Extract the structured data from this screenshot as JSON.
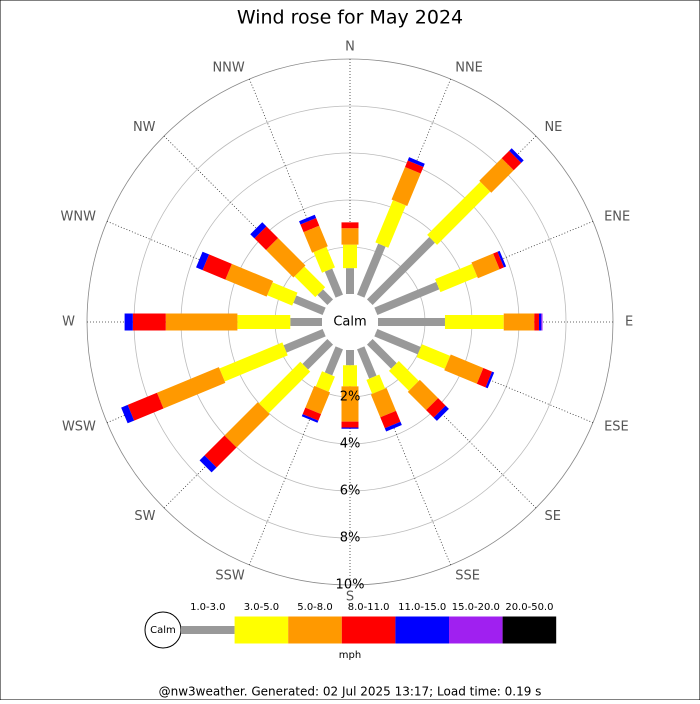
{
  "chart_data": {
    "type": "windrose",
    "title": "Wind rose for May 2024",
    "calm_label": "Calm",
    "unit": "mph",
    "footer": "@nw3weather. Generated: 02 Jul 2025 13:17; Load time: 0.19 s",
    "categories": [
      "N",
      "NNE",
      "NE",
      "ENE",
      "E",
      "ESE",
      "SE",
      "SSE",
      "S",
      "SSW",
      "SW",
      "WSW",
      "W",
      "WNW",
      "NW",
      "NNW"
    ],
    "rlim": [
      0,
      10
    ],
    "rticks": [
      {
        "value": 2,
        "label": "2%"
      },
      {
        "value": 4,
        "label": "4%"
      },
      {
        "value": 6,
        "label": "6%"
      },
      {
        "value": 8,
        "label": "8%"
      },
      {
        "value": 10,
        "label": "10%"
      }
    ],
    "series": [
      {
        "name": "1.0-3.0",
        "color": "#999999",
        "values": [
          1.1,
          2.35,
          3.75,
          2.85,
          2.85,
          2.0,
          1.45,
          1.35,
          0.65,
          1.2,
          1.5,
          1.8,
          1.35,
          1.35,
          0.6,
          1.2
        ]
      },
      {
        "name": "3.0-5.0",
        "color": "#ffff00",
        "values": [
          1.0,
          1.95,
          3.2,
          1.7,
          2.5,
          1.3,
          1.2,
          0.65,
          0.9,
          0.7,
          2.5,
          2.9,
          2.25,
          1.15,
          1.25,
          0.95
        ]
      },
      {
        "name": "5.0-8.0",
        "color": "#ff9900",
        "values": [
          0.7,
          1.5,
          1.35,
          1.0,
          1.3,
          1.5,
          1.1,
          1.05,
          1.5,
          1.0,
          2.0,
          2.85,
          3.05,
          1.9,
          1.65,
          0.95
        ]
      },
      {
        "name": "8.0-11.0",
        "color": "#ff0000",
        "values": [
          0.25,
          0.3,
          0.45,
          0.2,
          0.2,
          0.4,
          0.45,
          0.5,
          0.25,
          0.3,
          1.2,
          1.35,
          1.4,
          1.05,
          0.7,
          0.35
        ]
      },
      {
        "name": "11.0-15.0",
        "color": "#0000ff",
        "values": [
          0,
          0.15,
          0.15,
          0.1,
          0.1,
          0.1,
          0.2,
          0.15,
          0.05,
          0.1,
          0.3,
          0.3,
          0.35,
          0.3,
          0.25,
          0.15
        ]
      },
      {
        "name": "15.0-20.0",
        "color": "#a020f0",
        "values": [
          0,
          0,
          0,
          0,
          0.05,
          0,
          0,
          0,
          0,
          0,
          0,
          0,
          0,
          0,
          0,
          0
        ]
      },
      {
        "name": "20.0-50.0",
        "color": "#000000",
        "values": [
          0,
          0,
          0,
          0,
          0,
          0,
          0,
          0,
          0,
          0,
          0,
          0,
          0,
          0,
          0,
          0
        ]
      }
    ]
  }
}
